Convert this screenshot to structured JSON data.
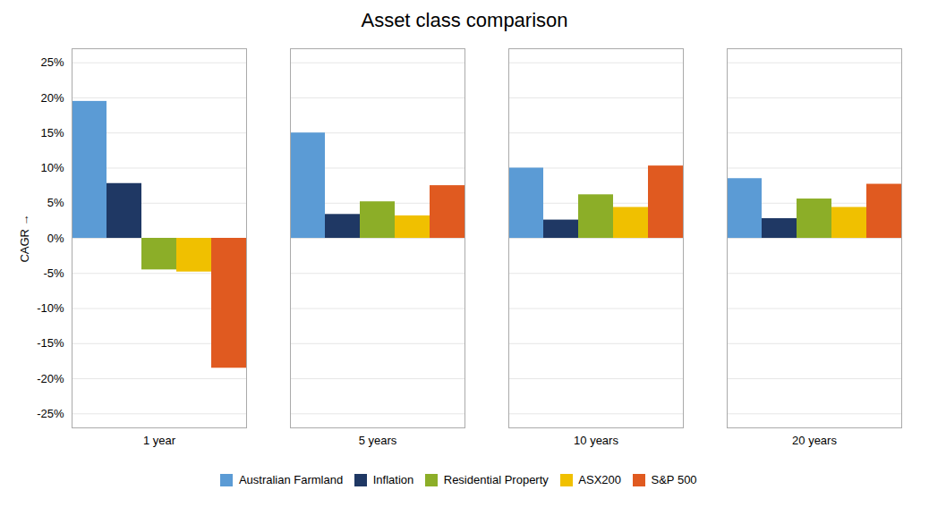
{
  "chart_data": {
    "type": "bar",
    "title": "Asset class comparison",
    "ylabel": "CAGR",
    "categories": [
      "1 year",
      "5 years",
      "10 years",
      "20 years"
    ],
    "series": [
      {
        "name": "Australian Farmland",
        "color": "#5B9BD5",
        "values": [
          0.195,
          0.15,
          0.1,
          0.085
        ]
      },
      {
        "name": "Inflation",
        "color": "#1F3864",
        "values": [
          0.078,
          0.034,
          0.026,
          0.028
        ]
      },
      {
        "name": "Residential Property",
        "color": "#8CAE28",
        "values": [
          -0.045,
          0.052,
          0.062,
          0.056
        ]
      },
      {
        "name": "ASX200",
        "color": "#F0C000",
        "values": [
          -0.048,
          0.032,
          0.044,
          0.044
        ]
      },
      {
        "name": "S&P 500",
        "color": "#E05A20",
        "values": [
          -0.185,
          0.075,
          0.103,
          0.077
        ]
      }
    ],
    "ylim": [
      -0.27,
      0.27
    ],
    "yticks": [
      {
        "value": -0.25,
        "label": "-25%"
      },
      {
        "value": -0.2,
        "label": "-20%"
      },
      {
        "value": -0.15,
        "label": "-15%"
      },
      {
        "value": -0.1,
        "label": "-10%"
      },
      {
        "value": -0.05,
        "label": "-5%"
      },
      {
        "value": 0.0,
        "label": "0%"
      },
      {
        "value": 0.05,
        "label": "5%"
      },
      {
        "value": 0.1,
        "label": "10%"
      },
      {
        "value": 0.15,
        "label": "15%"
      },
      {
        "value": 0.2,
        "label": "20%"
      },
      {
        "value": 0.25,
        "label": "25%"
      }
    ],
    "grid": true,
    "legend": "bottom"
  }
}
